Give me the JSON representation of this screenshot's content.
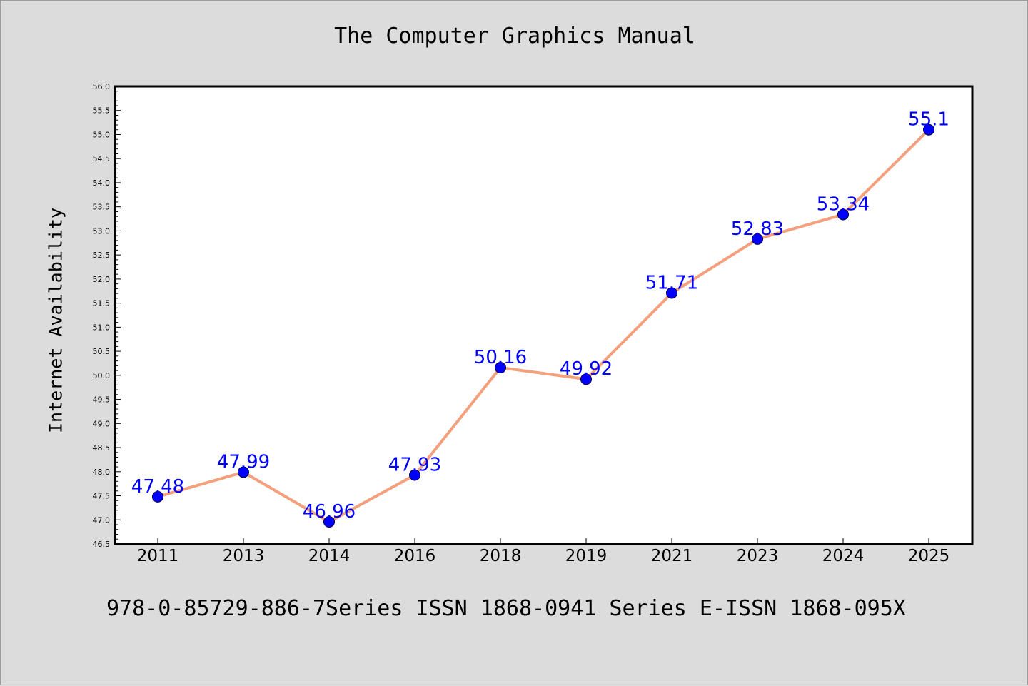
{
  "chart_data": {
    "type": "line",
    "title": "The Computer Graphics Manual",
    "xlabel": "",
    "ylabel": "Internet Availability",
    "categories": [
      "2011",
      "2013",
      "2014",
      "2016",
      "2018",
      "2019",
      "2021",
      "2023",
      "2024",
      "2025"
    ],
    "series": [
      {
        "values": [
          47.48,
          47.99,
          46.96,
          47.93,
          50.16,
          49.92,
          51.71,
          52.83,
          53.34,
          55.1
        ],
        "labels": [
          "47.48",
          "47.99",
          "46.96",
          "47.93",
          "50.16",
          "49.92",
          "51.71",
          "52.83",
          "53.34",
          "55.1"
        ],
        "line_color": "#f4a07c",
        "marker_color": "#0000ff",
        "label_color": "#0000ff"
      }
    ],
    "ylim": [
      46.5,
      56.0
    ],
    "yticks": [
      "46.5",
      "47.0",
      "47.5",
      "48.0",
      "48.5",
      "49.0",
      "49.5",
      "50.0",
      "50.5",
      "51.0",
      "51.5",
      "52.0",
      "52.5",
      "53.0",
      "53.5",
      "54.0",
      "54.5",
      "55.0",
      "55.5",
      "56.0"
    ],
    "grid": false,
    "background": "#dcdcdc",
    "plot_background": "#ffffff"
  },
  "footer": {
    "text": "978-0-85729-886-7Series ISSN 1868-0941 Series E-ISSN 1868-095X"
  }
}
